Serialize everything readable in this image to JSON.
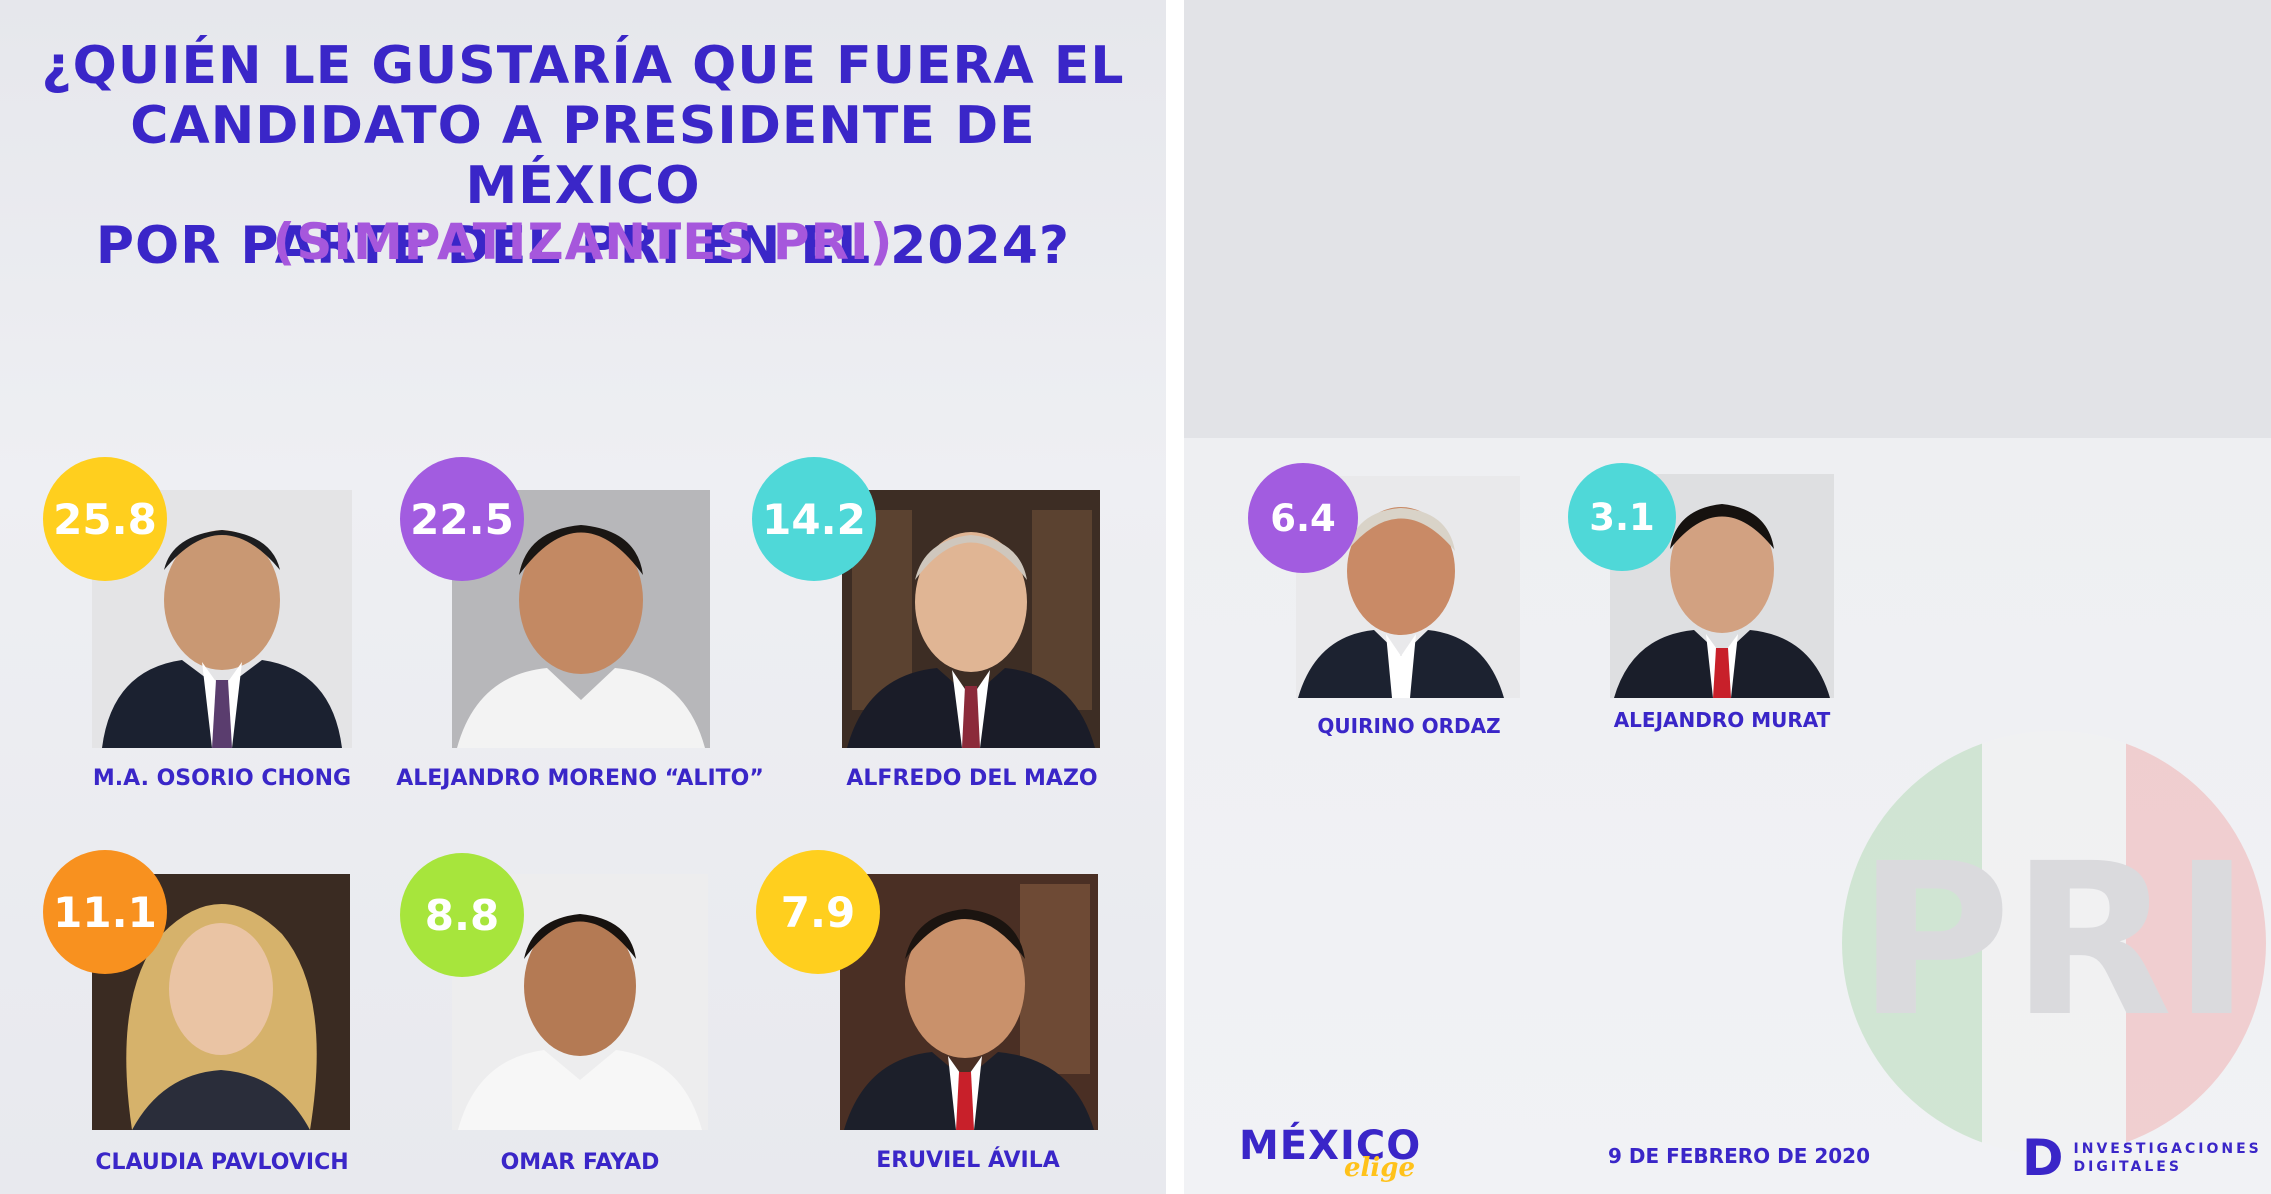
{
  "title_lines": [
    "¿QUIÉN LE GUSTARÍA QUE FUERA EL",
    "CANDIDATO A PRESIDENTE DE MÉXICO",
    "POR PARTE DEL PRI EN EL 2024?"
  ],
  "subtitle": "(SIMPATIZANTES PRI)",
  "colors": {
    "title": "#3a26c8",
    "subtitle": "#a657dc",
    "yellow": "#ffcf1e",
    "purple": "#a25ce0",
    "cyan": "#4fd8d8",
    "orange": "#f8911f",
    "green": "#a7e53c"
  },
  "candidates": [
    {
      "name": "M.A. OSORIO CHONG",
      "value": "25.8",
      "color": "#ffcf1e"
    },
    {
      "name": "ALEJANDRO MORENO “ALITO”",
      "value": "22.5",
      "color": "#a25ce0"
    },
    {
      "name": "ALFREDO DEL MAZO",
      "value": "14.2",
      "color": "#4fd8d8"
    },
    {
      "name": "CLAUDIA PAVLOVICH",
      "value": "11.1",
      "color": "#f8911f"
    },
    {
      "name": "OMAR FAYAD",
      "value": "8.8",
      "color": "#a7e53c"
    },
    {
      "name": "ERUVIEL ÁVILA",
      "value": "7.9",
      "color": "#ffcf1e"
    },
    {
      "name": "QUIRINO ORDAZ",
      "value": "6.4",
      "color": "#a25ce0"
    },
    {
      "name": "ALEJANDRO MURAT",
      "value": "3.1",
      "color": "#4fd8d8"
    }
  ],
  "footer": {
    "logo_main": "MÉXICO",
    "logo_sub": "elige",
    "date": "9 DE FEBRERO DE 2020",
    "id_mark": "D",
    "id_line1": "INVESTIGACIONES",
    "id_line2": "DIGITALES",
    "watermark": "PRI"
  }
}
